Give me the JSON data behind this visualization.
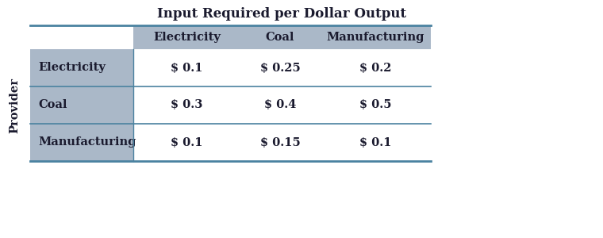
{
  "title": "Input Required per Dollar Output",
  "col_headers": [
    "Electricity",
    "Coal",
    "Manufacturing"
  ],
  "row_headers": [
    "Electricity",
    "Coal",
    "Manufacturing"
  ],
  "row_label": "Provider",
  "table_data": [
    [
      "$ 0.1",
      "$ 0.25",
      "$ 0.2"
    ],
    [
      "$ 0.3",
      "$ 0.4",
      "$ 0.5"
    ],
    [
      "$ 0.1",
      "$ 0.15",
      "$ 0.1"
    ]
  ],
  "header_bg": "#aab8c8",
  "row_header_bg": "#aab8c8",
  "cell_bg": "#ffffff",
  "divider_color": "#4a82a0",
  "text_color": "#1a1a2e",
  "title_fontsize": 12,
  "header_fontsize": 10.5,
  "cell_fontsize": 10.5,
  "row_label_fontsize": 10.5,
  "fig_width": 7.6,
  "fig_height": 3.0,
  "dpi": 100
}
